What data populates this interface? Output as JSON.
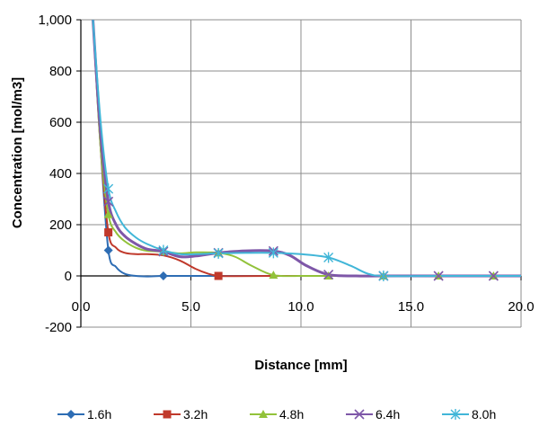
{
  "chart_data": {
    "type": "line",
    "title": "",
    "xlabel": "Distance [mm]",
    "ylabel": "Concentration  [mol/m3]",
    "xlim": [
      0,
      20
    ],
    "ylim": [
      -200,
      1000
    ],
    "x_ticks": [
      0,
      5,
      10,
      15,
      20
    ],
    "y_ticks": [
      -200,
      0,
      200,
      400,
      600,
      800,
      1000
    ],
    "x_tick_labels": [
      "0.0",
      "5.0",
      "10.0",
      "15.0",
      "20.0"
    ],
    "y_tick_labels": [
      "-200",
      "0",
      "200",
      "400",
      "600",
      "800",
      "1,000"
    ],
    "grid": true,
    "legend_position": "bottom",
    "series": [
      {
        "name": "1.6h",
        "color": "#2E6DB4",
        "marker": "diamond",
        "x": [
          0.55,
          0.9,
          1.25,
          1.6,
          2.0,
          2.5,
          3.0,
          3.75,
          5.0,
          6.25,
          8.75,
          11.25,
          13.75,
          16.25,
          18.75,
          20
        ],
        "y": [
          1000,
          500,
          100,
          35,
          8,
          0,
          -2,
          0,
          0,
          0,
          0,
          0,
          0,
          0,
          0,
          0
        ],
        "marker_x": [
          1.25,
          3.75
        ]
      },
      {
        "name": "3.2h",
        "color": "#C0392B",
        "marker": "square",
        "x": [
          0.55,
          0.9,
          1.25,
          1.6,
          2.0,
          2.5,
          3.0,
          3.75,
          4.5,
          5.2,
          5.8,
          6.25,
          7.0,
          8.75,
          11.25,
          13.75,
          16.25,
          18.75,
          20
        ],
        "y": [
          1000,
          500,
          170,
          110,
          90,
          85,
          85,
          80,
          60,
          28,
          8,
          0,
          -1,
          0,
          0,
          0,
          0,
          0,
          0
        ],
        "marker_x": [
          1.25,
          6.25
        ]
      },
      {
        "name": "4.8h",
        "color": "#92C23A",
        "marker": "triangle",
        "x": [
          0.55,
          0.9,
          1.25,
          1.6,
          2.0,
          2.5,
          3.0,
          3.75,
          4.5,
          5.25,
          6.25,
          7.0,
          7.75,
          8.75,
          10.0,
          11.25,
          13.75,
          16.25,
          18.75,
          20
        ],
        "y": [
          1000,
          500,
          240,
          170,
          135,
          110,
          98,
          95,
          88,
          92,
          90,
          75,
          40,
          3,
          0,
          0,
          0,
          0,
          0,
          0
        ],
        "marker_x": [
          1.25,
          3.75,
          6.25,
          8.75,
          11.25,
          13.75,
          16.25,
          18.75
        ]
      },
      {
        "name": "6.4h",
        "color": "#7E57A8",
        "marker": "x",
        "x": [
          0.55,
          0.9,
          1.25,
          1.6,
          2.0,
          2.5,
          3.0,
          3.75,
          4.5,
          5.25,
          6.25,
          7.5,
          8.75,
          9.5,
          10.25,
          11.25,
          12.5,
          13.75,
          16.25,
          18.75,
          20
        ],
        "y": [
          1000,
          550,
          290,
          200,
          155,
          125,
          105,
          95,
          75,
          78,
          90,
          98,
          97,
          80,
          40,
          5,
          0,
          0,
          0,
          0,
          0
        ],
        "marker_x": [
          1.25,
          3.75,
          6.25,
          8.75,
          11.25,
          13.75,
          16.25,
          18.75
        ]
      },
      {
        "name": "8.0h",
        "color": "#41B6D8",
        "marker": "asterisk",
        "x": [
          0.55,
          0.9,
          1.25,
          1.6,
          2.0,
          2.5,
          3.0,
          3.75,
          4.5,
          5.25,
          6.25,
          7.5,
          8.75,
          10.0,
          11.25,
          12.25,
          13.0,
          13.75,
          16.25,
          18.75,
          20
        ],
        "y": [
          1000,
          600,
          340,
          250,
          190,
          150,
          125,
          100,
          85,
          85,
          88,
          90,
          90,
          85,
          72,
          40,
          10,
          0,
          0,
          0,
          0
        ],
        "marker_x": [
          1.25,
          3.75,
          6.25,
          8.75,
          11.25,
          13.75
        ]
      }
    ]
  }
}
